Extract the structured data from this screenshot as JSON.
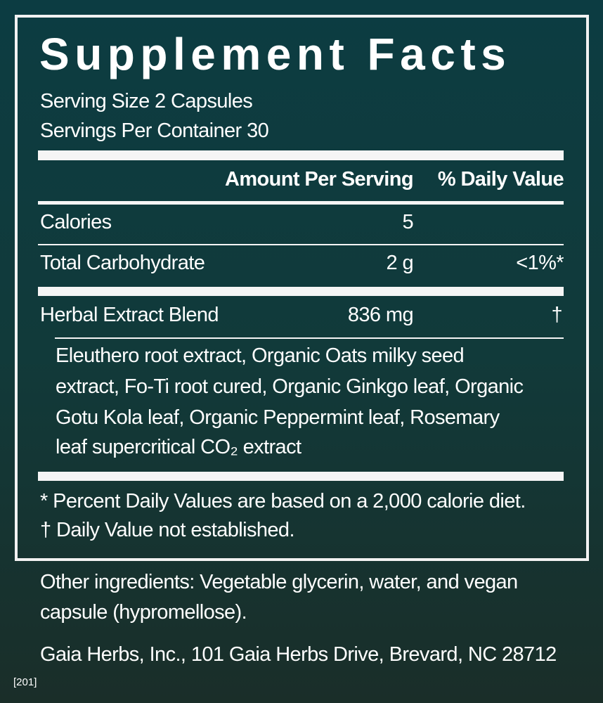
{
  "title": "Supplement Facts",
  "serving_size": "Serving Size 2 Capsules",
  "servings_per_container": "Servings Per Container 30",
  "headers": {
    "amount": "Amount Per Serving",
    "dv": "% Daily Value"
  },
  "rows": [
    {
      "name": "Calories",
      "amount": "5",
      "dv": ""
    },
    {
      "name": "Total Carbohydrate",
      "amount": "2 g",
      "dv": "<1%*"
    },
    {
      "name": "Herbal Extract Blend",
      "amount": "836 mg",
      "dv": "†"
    }
  ],
  "blend_ingredients": [
    "Eleuthero root extract, Organic Oats milky seed",
    "extract, Fo-Ti root cured, Organic Ginkgo leaf, Organic",
    "Gotu Kola leaf, Organic Peppermint leaf, Rosemary",
    "leaf supercritical CO₂ extract"
  ],
  "footnotes": [
    "*  Percent Daily Values are based on a 2,000 calorie diet.",
    "† Daily Value not established."
  ],
  "other_ingredients": [
    "Other ingredients: Vegetable glycerin, water, and vegan",
    "capsule (hypromellose)."
  ],
  "manufacturer": "Gaia Herbs, Inc., 101 Gaia Herbs Drive, Brevard, NC 28712",
  "code": "[201]",
  "colors": {
    "background_top": "#0c3c42",
    "background_bottom": "#1a2e29",
    "text": "#ffffff"
  }
}
